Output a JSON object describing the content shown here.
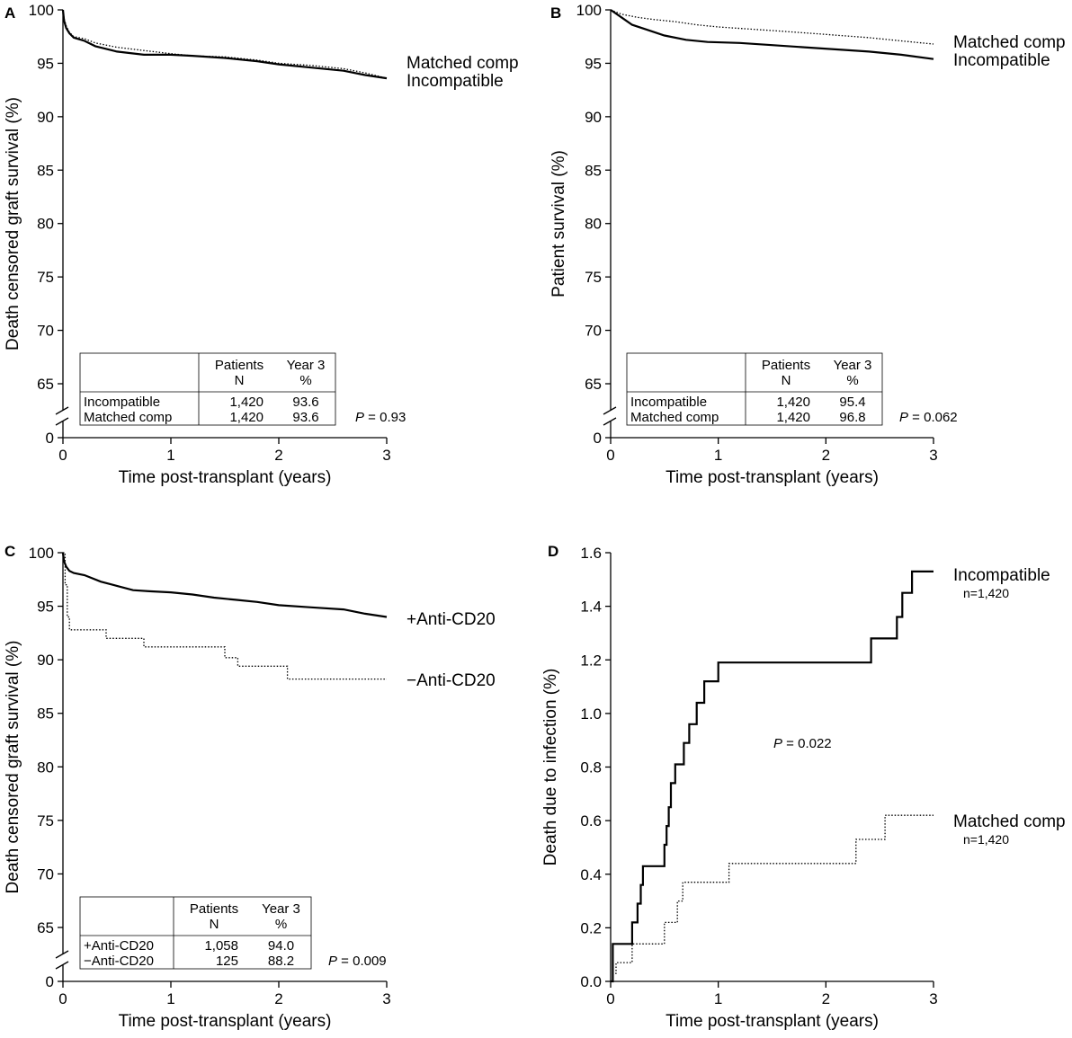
{
  "chart_data": [
    {
      "type": "line",
      "panel": "A",
      "xlabel": "Time post-transplant (years)",
      "ylabel": "Death censored graft survival (%)",
      "xlim": [
        0,
        3
      ],
      "ylim": [
        65,
        100
      ],
      "y_break_value": 0,
      "xticks": [
        "0",
        "1",
        "2",
        "3"
      ],
      "yticks": [
        "65",
        "70",
        "75",
        "80",
        "85",
        "90",
        "95",
        "100"
      ],
      "series": [
        {
          "name": "Incompatible",
          "style": "solid",
          "x": [
            0,
            0.01,
            0.03,
            0.06,
            0.1,
            0.2,
            0.3,
            0.5,
            0.75,
            1.0,
            1.2,
            1.5,
            1.8,
            2.0,
            2.3,
            2.6,
            2.8,
            3.0
          ],
          "y": [
            100,
            99,
            98.3,
            97.8,
            97.4,
            97.1,
            96.6,
            96.1,
            95.8,
            95.8,
            95.7,
            95.5,
            95.2,
            94.9,
            94.6,
            94.3,
            93.9,
            93.6
          ]
        },
        {
          "name": "Matched comp",
          "style": "dotted",
          "x": [
            0,
            0.01,
            0.03,
            0.06,
            0.1,
            0.2,
            0.3,
            0.5,
            0.75,
            1.0,
            1.2,
            1.5,
            1.8,
            2.0,
            2.3,
            2.6,
            2.8,
            3.0
          ],
          "y": [
            100,
            99.2,
            98.5,
            97.9,
            97.5,
            97.3,
            96.9,
            96.5,
            96.2,
            95.9,
            95.7,
            95.6,
            95.3,
            95.0,
            94.8,
            94.5,
            94.1,
            93.6
          ]
        }
      ],
      "legend_order": [
        "Matched comp",
        "Incompatible"
      ],
      "table": {
        "headers": [
          [
            "",
            "Patients",
            "Year 3"
          ],
          [
            "",
            "N",
            "%"
          ]
        ],
        "rows": [
          [
            "Incompatible",
            "1,420",
            "93.6"
          ],
          [
            "Matched comp",
            "1,420",
            "93.6"
          ]
        ]
      },
      "p_label": "P",
      "p_value": " = 0.93"
    },
    {
      "type": "line",
      "panel": "B",
      "xlabel": "Time post-transplant (years)",
      "ylabel": "Patient survival (%)",
      "xlim": [
        0,
        3
      ],
      "ylim": [
        65,
        100
      ],
      "y_break_value": 0,
      "xticks": [
        "0",
        "1",
        "2",
        "3"
      ],
      "yticks": [
        "65",
        "70",
        "75",
        "80",
        "85",
        "90",
        "95",
        "100"
      ],
      "series": [
        {
          "name": "Matched comp",
          "style": "dotted",
          "x": [
            0,
            0.1,
            0.25,
            0.4,
            0.6,
            0.8,
            1.0,
            1.3,
            1.6,
            2.0,
            2.4,
            2.8,
            3.0
          ],
          "y": [
            100,
            99.6,
            99.3,
            99.1,
            98.9,
            98.6,
            98.4,
            98.2,
            98.0,
            97.7,
            97.4,
            97.0,
            96.8
          ]
        },
        {
          "name": "Incompatible",
          "style": "solid",
          "x": [
            0,
            0.1,
            0.2,
            0.35,
            0.5,
            0.7,
            0.9,
            1.2,
            1.5,
            1.8,
            2.1,
            2.4,
            2.7,
            3.0
          ],
          "y": [
            100,
            99.3,
            98.6,
            98.1,
            97.6,
            97.2,
            97.0,
            96.9,
            96.7,
            96.5,
            96.3,
            96.1,
            95.8,
            95.4
          ]
        }
      ],
      "legend_order": [
        "Matched comp",
        "Incompatible"
      ],
      "table": {
        "headers": [
          [
            "",
            "Patients",
            "Year 3"
          ],
          [
            "",
            "N",
            "%"
          ]
        ],
        "rows": [
          [
            "Incompatible",
            "1,420",
            "95.4"
          ],
          [
            "Matched comp",
            "1,420",
            "96.8"
          ]
        ]
      },
      "p_label": "P",
      "p_value": " = 0.062"
    },
    {
      "type": "line",
      "panel": "C",
      "xlabel": "Time post-transplant (years)",
      "ylabel": "Death censored graft survival (%)",
      "xlim": [
        0,
        3
      ],
      "ylim": [
        65,
        100
      ],
      "y_break_value": 0,
      "xticks": [
        "0",
        "1",
        "2",
        "3"
      ],
      "yticks": [
        "65",
        "70",
        "75",
        "80",
        "85",
        "90",
        "95",
        "100"
      ],
      "series": [
        {
          "name": "+Anti-CD20",
          "style": "solid",
          "x": [
            0,
            0.01,
            0.03,
            0.06,
            0.1,
            0.2,
            0.35,
            0.5,
            0.65,
            0.8,
            1.0,
            1.2,
            1.4,
            1.6,
            1.8,
            2.0,
            2.3,
            2.6,
            2.8,
            3.0
          ],
          "y": [
            100,
            99.2,
            98.7,
            98.3,
            98.1,
            97.9,
            97.3,
            96.9,
            96.5,
            96.4,
            96.3,
            96.1,
            95.8,
            95.6,
            95.4,
            95.1,
            94.9,
            94.7,
            94.3,
            94.0
          ]
        },
        {
          "name": "−Anti-CD20",
          "style": "dotted",
          "step": true,
          "x": [
            0,
            0.02,
            0.04,
            0.06,
            0.4,
            0.75,
            1.25,
            1.5,
            1.62,
            2.08,
            3.0
          ],
          "y": [
            100,
            97.0,
            94.0,
            92.8,
            92.0,
            91.2,
            91.2,
            90.2,
            89.4,
            88.2,
            88.2
          ]
        }
      ],
      "legend_order": [
        "+Anti-CD20",
        "−Anti-CD20"
      ],
      "table": {
        "headers": [
          [
            "",
            "Patients",
            "Year 3"
          ],
          [
            "",
            "N",
            "%"
          ]
        ],
        "rows": [
          [
            "+Anti-CD20",
            "1,058",
            "94.0"
          ],
          [
            "−Anti-CD20",
            "125",
            "88.2"
          ]
        ]
      },
      "p_label": "P",
      "p_value": " = 0.009"
    },
    {
      "type": "line",
      "panel": "D",
      "xlabel": "Time post-transplant (years)",
      "ylabel": "Death due to infection (%)",
      "xlim": [
        0,
        3
      ],
      "ylim": [
        0,
        1.6
      ],
      "xticks": [
        "0",
        "1",
        "2",
        "3"
      ],
      "yticks": [
        "0.0",
        "0.2",
        "0.4",
        "0.6",
        "0.8",
        "1.0",
        "1.2",
        "1.4",
        "1.6"
      ],
      "series": [
        {
          "name": "Incompatible",
          "n_label": "n=1,420",
          "style": "solid",
          "step": true,
          "x": [
            0,
            0.02,
            0.13,
            0.2,
            0.25,
            0.28,
            0.3,
            0.5,
            0.52,
            0.54,
            0.56,
            0.6,
            0.68,
            0.73,
            0.8,
            0.87,
            1.0,
            2.42,
            2.66,
            2.71,
            2.8,
            3.0
          ],
          "y": [
            0,
            0.14,
            0.14,
            0.22,
            0.29,
            0.36,
            0.43,
            0.51,
            0.58,
            0.65,
            0.74,
            0.81,
            0.89,
            0.96,
            1.04,
            1.12,
            1.19,
            1.28,
            1.36,
            1.45,
            1.53,
            1.53
          ]
        },
        {
          "name": "Matched comp",
          "n_label": "n=1,420",
          "style": "dotted",
          "step": true,
          "x": [
            0,
            0.02,
            0.05,
            0.1,
            0.2,
            0.5,
            0.62,
            0.67,
            0.73,
            1.1,
            2.28,
            2.55,
            3.0
          ],
          "y": [
            0,
            0.03,
            0.07,
            0.07,
            0.14,
            0.22,
            0.3,
            0.37,
            0.37,
            0.44,
            0.53,
            0.62,
            0.62
          ]
        }
      ],
      "legend_order": [
        "Incompatible",
        "Matched comp"
      ],
      "p_label": "P",
      "p_value": " = 0.022"
    }
  ]
}
